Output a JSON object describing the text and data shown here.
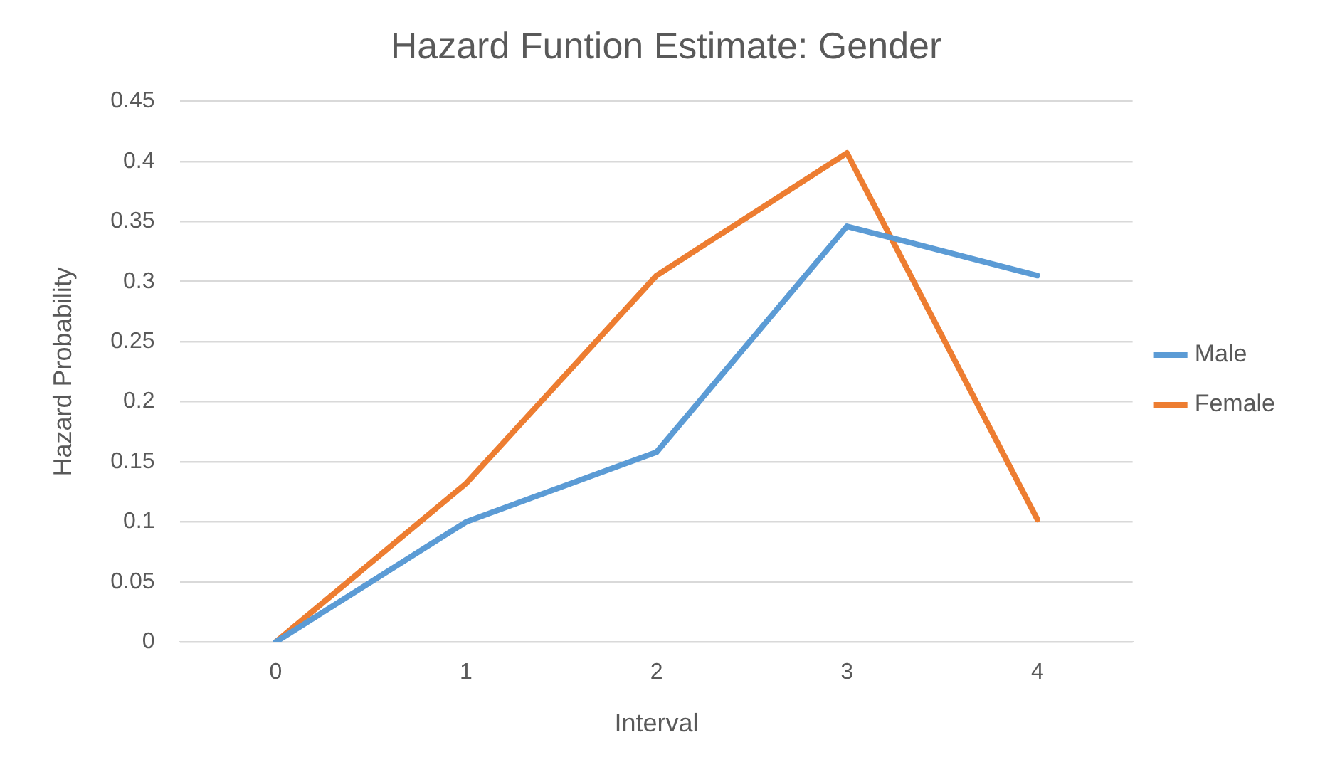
{
  "chart_data": {
    "type": "line",
    "title": "Hazard Funtion Estimate: Gender",
    "xlabel": "Interval",
    "ylabel": "Hazard Probability",
    "categories": [
      "0",
      "1",
      "2",
      "3",
      "4"
    ],
    "series": [
      {
        "name": "Male",
        "color": "#5b9bd5",
        "values": [
          0,
          0.1,
          0.158,
          0.346,
          0.305
        ]
      },
      {
        "name": "Female",
        "color": "#ed7d31",
        "values": [
          0,
          0.132,
          0.305,
          0.407,
          0.102
        ]
      }
    ],
    "ylim": [
      0,
      0.45
    ],
    "yticks": [
      0,
      0.05,
      0.1,
      0.15,
      0.2,
      0.25,
      0.3,
      0.35,
      0.4,
      0.45
    ],
    "grid": "y",
    "legend": "right",
    "marker": "none",
    "line_style": "solid"
  }
}
